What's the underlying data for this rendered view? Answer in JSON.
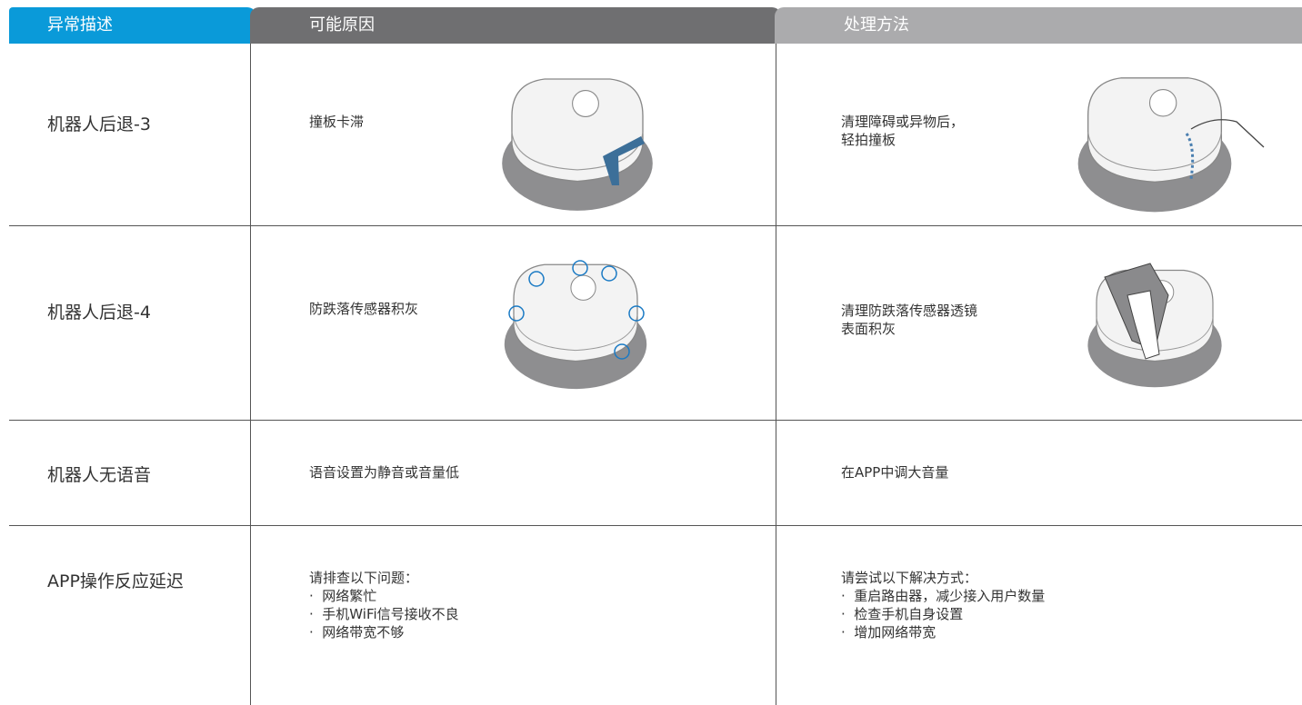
{
  "header": [
    "异常描述",
    "可能原因",
    "处理方法"
  ],
  "rows": [
    {
      "issue": "机器人后退-3",
      "cause": [
        "撞板卡滞"
      ],
      "solution": [
        "清理障碍或异物后，",
        "轻拍撞板"
      ]
    },
    {
      "issue": "机器人后退-4",
      "cause": [
        "防跌落传感器积灰"
      ],
      "solution": [
        "清理防跌落传感器透镜",
        "表面积灰"
      ]
    },
    {
      "issue": "机器人无语音",
      "cause": [
        "语音设置为静音或音量低"
      ],
      "solution": [
        "在APP中调大音量"
      ]
    },
    {
      "issue": "APP操作反应延迟",
      "cause": [
        "请排查以下问题：",
        "·  网络繁忙",
        "·  手机WiFi信号接收不良",
        "·  网络带宽不够"
      ],
      "solution": [
        "请尝试以下解决方式：",
        "·  重启路由器，减少接入用户数量",
        "·  检查手机自身设置",
        "·  增加网络带宽"
      ]
    }
  ]
}
